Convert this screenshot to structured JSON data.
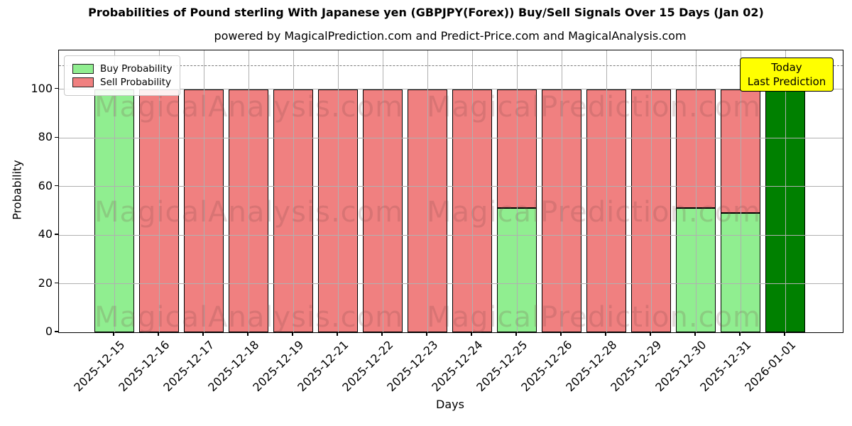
{
  "chart_data": {
    "type": "bar",
    "stacked": true,
    "title": "Probabilities of Pound sterling With Japanese yen (GBPJPY(Forex)) Buy/Sell Signals Over 15 Days (Jan 02)",
    "subtitle": "powered by MagicalPrediction.com and Predict-Price.com and MagicalAnalysis.com",
    "xlabel": "Days",
    "ylabel": "Probability",
    "ylim": [
      0,
      116
    ],
    "yticks": [
      0,
      20,
      40,
      60,
      80,
      100
    ],
    "dashed_line_y": 110,
    "grid": true,
    "legend_position": "upper left",
    "legend": [
      {
        "label": "Buy Probability",
        "color": "#90ee90"
      },
      {
        "label": "Sell Probability",
        "color": "#f08080"
      }
    ],
    "colors": {
      "buy": "#90ee90",
      "sell": "#f08080",
      "last": "#008000"
    },
    "annotation": {
      "lines": [
        "Today",
        "Last Prediction"
      ],
      "bg": "#ffff00"
    },
    "watermark": {
      "texts": [
        "MagicalAnalysis.com",
        "MagicalPrediction.com"
      ],
      "rows": 3
    },
    "bars": [
      {
        "date": "2025-12-15",
        "segments": [
          {
            "type": "buy",
            "value": 100
          }
        ]
      },
      {
        "date": "2025-12-16",
        "segments": [
          {
            "type": "sell",
            "value": 100
          }
        ]
      },
      {
        "date": "2025-12-17",
        "segments": [
          {
            "type": "sell",
            "value": 100
          }
        ]
      },
      {
        "date": "2025-12-18",
        "segments": [
          {
            "type": "sell",
            "value": 100
          }
        ]
      },
      {
        "date": "2025-12-19",
        "segments": [
          {
            "type": "sell",
            "value": 100
          }
        ]
      },
      {
        "date": "2025-12-21",
        "segments": [
          {
            "type": "sell",
            "value": 100
          }
        ]
      },
      {
        "date": "2025-12-22",
        "segments": [
          {
            "type": "sell",
            "value": 100
          }
        ]
      },
      {
        "date": "2025-12-23",
        "segments": [
          {
            "type": "sell",
            "value": 100
          }
        ]
      },
      {
        "date": "2025-12-24",
        "segments": [
          {
            "type": "sell",
            "value": 100
          }
        ]
      },
      {
        "date": "2025-12-25",
        "segments": [
          {
            "type": "buy",
            "value": 51
          },
          {
            "type": "sell",
            "value": 49
          }
        ]
      },
      {
        "date": "2025-12-26",
        "segments": [
          {
            "type": "sell",
            "value": 100
          }
        ]
      },
      {
        "date": "2025-12-28",
        "segments": [
          {
            "type": "sell",
            "value": 100
          }
        ]
      },
      {
        "date": "2025-12-29",
        "segments": [
          {
            "type": "sell",
            "value": 100
          }
        ]
      },
      {
        "date": "2025-12-30",
        "segments": [
          {
            "type": "buy",
            "value": 51
          },
          {
            "type": "sell",
            "value": 49
          }
        ]
      },
      {
        "date": "2025-12-31",
        "segments": [
          {
            "type": "buy",
            "value": 49
          },
          {
            "type": "sell",
            "value": 51
          }
        ]
      },
      {
        "date": "2026-01-01",
        "segments": [
          {
            "type": "last",
            "value": 100
          }
        ]
      }
    ]
  }
}
